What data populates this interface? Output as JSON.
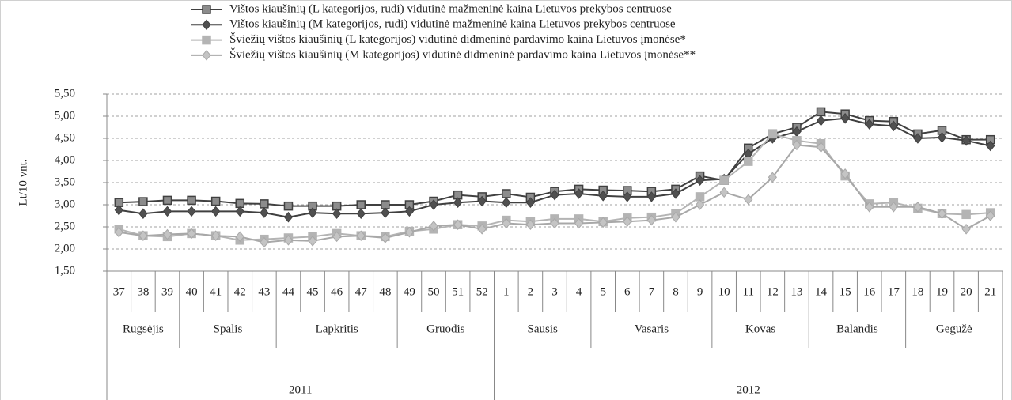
{
  "chart_data": {
    "type": "line",
    "y_label": "Lt/10 vnt.",
    "categories": [
      "37",
      "38",
      "39",
      "40",
      "41",
      "42",
      "43",
      "44",
      "45",
      "46",
      "47",
      "48",
      "49",
      "50",
      "51",
      "52",
      "1",
      "2",
      "3",
      "4",
      "5",
      "6",
      "7",
      "8",
      "9",
      "10",
      "11",
      "12",
      "13",
      "14",
      "15",
      "16",
      "17",
      "18",
      "19",
      "20",
      "21"
    ],
    "months": [
      {
        "label": "Rugsėjis",
        "count": 3
      },
      {
        "label": "Spalis",
        "count": 4
      },
      {
        "label": "Lapkritis",
        "count": 5
      },
      {
        "label": "Gruodis",
        "count": 4
      },
      {
        "label": "Sausis",
        "count": 4
      },
      {
        "label": "Vasaris",
        "count": 5
      },
      {
        "label": "Kovas",
        "count": 4
      },
      {
        "label": "Balandis",
        "count": 4
      },
      {
        "label": "Gegužė",
        "count": 4
      }
    ],
    "years": [
      {
        "label": "2011",
        "count": 16
      },
      {
        "label": "2012",
        "count": 21
      }
    ],
    "ylim": [
      1.5,
      5.5
    ],
    "yticks": [
      {
        "value": 1.5,
        "label": "1,50"
      },
      {
        "value": 2.0,
        "label": "2,00"
      },
      {
        "value": 2.5,
        "label": "2,50"
      },
      {
        "value": 3.0,
        "label": "3,00"
      },
      {
        "value": 3.5,
        "label": "3,50"
      },
      {
        "value": 4.0,
        "label": "4,00"
      },
      {
        "value": 4.5,
        "label": "4,50"
      },
      {
        "value": 5.0,
        "label": "5,00"
      },
      {
        "value": 5.5,
        "label": "5,50"
      }
    ],
    "grid": true,
    "legend": "top",
    "series": [
      {
        "name": "Vištos kiaušinių (L kategorijos, rudi) vidutinė mažmeninė kaina Lietuvos prekybos centruose",
        "color": "#404040",
        "marker": "square",
        "marker_fill": "#8c8c8c",
        "values": [
          3.05,
          3.07,
          3.1,
          3.1,
          3.08,
          3.03,
          3.02,
          2.97,
          2.97,
          2.97,
          3.0,
          3.0,
          3.0,
          3.08,
          3.22,
          3.18,
          3.25,
          3.17,
          3.3,
          3.35,
          3.33,
          3.32,
          3.3,
          3.35,
          3.65,
          3.55,
          4.28,
          4.6,
          4.75,
          5.1,
          5.05,
          4.9,
          4.88,
          4.6,
          4.68,
          4.47,
          4.47
        ]
      },
      {
        "name": "Vištos kiaušinių (M kategorijos, rudi) vidutinė mažmeninė kaina Lietuvos prekybos centruose",
        "color": "#404040",
        "marker": "diamond",
        "marker_fill": "#505050",
        "values": [
          2.88,
          2.8,
          2.85,
          2.85,
          2.85,
          2.85,
          2.82,
          2.72,
          2.82,
          2.8,
          2.8,
          2.82,
          2.85,
          3.0,
          3.05,
          3.08,
          3.05,
          3.05,
          3.22,
          3.25,
          3.2,
          3.18,
          3.18,
          3.25,
          3.55,
          3.58,
          4.15,
          4.5,
          4.65,
          4.9,
          4.95,
          4.82,
          4.78,
          4.5,
          4.52,
          4.45,
          4.33
        ]
      },
      {
        "name": "Šviežių vištos kiaušinių (L kategorijos) vidutinė didmeninė pardavimo kaina Lietuvos įmonėse*",
        "color": "#b4b4b4",
        "marker": "square",
        "marker_fill": "#b4b4b4",
        "values": [
          2.45,
          2.3,
          2.28,
          2.35,
          2.3,
          2.2,
          2.22,
          2.25,
          2.28,
          2.35,
          2.3,
          2.28,
          2.4,
          2.45,
          2.55,
          2.52,
          2.65,
          2.62,
          2.68,
          2.68,
          2.62,
          2.7,
          2.72,
          2.8,
          3.18,
          3.55,
          3.98,
          4.6,
          4.45,
          4.38,
          3.65,
          3.02,
          3.05,
          2.92,
          2.8,
          2.78,
          2.82
        ]
      },
      {
        "name": "Šviežių vištos kiaušinių (M kategorijos) vidutinė didmeninė pardavimo kaina Lietuvos įmonėse**",
        "color": "#a8a8a8",
        "marker": "diamond",
        "marker_fill": "#c4c4c4",
        "values": [
          2.38,
          2.3,
          2.33,
          2.35,
          2.3,
          2.28,
          2.15,
          2.2,
          2.18,
          2.28,
          2.3,
          2.25,
          2.38,
          2.52,
          2.55,
          2.45,
          2.58,
          2.55,
          2.58,
          2.58,
          2.6,
          2.62,
          2.65,
          2.72,
          3.0,
          3.28,
          3.12,
          3.62,
          4.35,
          4.3,
          3.7,
          2.95,
          2.95,
          2.95,
          2.8,
          2.45,
          2.75
        ]
      }
    ]
  }
}
